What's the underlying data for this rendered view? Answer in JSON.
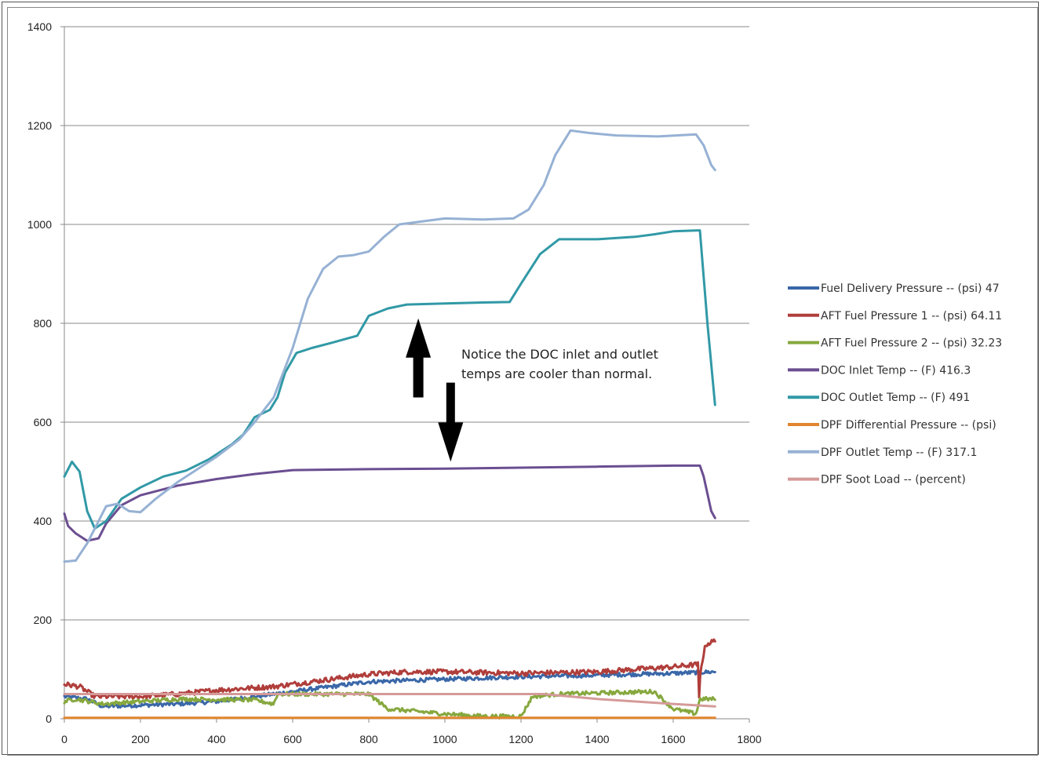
{
  "chart_data": {
    "type": "line",
    "title": "",
    "xlabel": "",
    "ylabel": "",
    "xlim": [
      0,
      1800
    ],
    "ylim": [
      0,
      1400
    ],
    "x_ticks": [
      0,
      200,
      400,
      600,
      800,
      1000,
      1200,
      1400,
      1600,
      1800
    ],
    "y_ticks": [
      0,
      200,
      400,
      600,
      800,
      1000,
      1200,
      1400
    ],
    "grid": "horizontal",
    "legend_position": "right",
    "annotation": {
      "lines": [
        "Notice the DOC inlet and outlet",
        "temps are cooler than normal."
      ],
      "arrows": [
        {
          "direction": "up",
          "x": 930,
          "y_from": 650,
          "y_to": 810
        },
        {
          "direction": "down",
          "x": 1015,
          "y_from": 680,
          "y_to": 520
        }
      ]
    },
    "series": [
      {
        "name": "Fuel Delivery Pressure --  (psi) 47",
        "color": "#3A67A8",
        "noise": 4,
        "points": [
          [
            0,
            45
          ],
          [
            60,
            40
          ],
          [
            100,
            25
          ],
          [
            300,
            30
          ],
          [
            400,
            35
          ],
          [
            550,
            50
          ],
          [
            600,
            55
          ],
          [
            800,
            75
          ],
          [
            1000,
            80
          ],
          [
            1200,
            85
          ],
          [
            1400,
            88
          ],
          [
            1600,
            92
          ],
          [
            1710,
            95
          ]
        ]
      },
      {
        "name": "AFT Fuel Pressure 1 --  (psi) 64.11",
        "color": "#B03E3B",
        "noise": 5,
        "points": [
          [
            0,
            70
          ],
          [
            40,
            65
          ],
          [
            80,
            45
          ],
          [
            200,
            45
          ],
          [
            300,
            50
          ],
          [
            400,
            58
          ],
          [
            550,
            65
          ],
          [
            650,
            75
          ],
          [
            800,
            90
          ],
          [
            900,
            95
          ],
          [
            1000,
            95
          ],
          [
            1200,
            92
          ],
          [
            1400,
            95
          ],
          [
            1600,
            105
          ],
          [
            1665,
            110
          ],
          [
            1668,
            40
          ],
          [
            1672,
            100
          ],
          [
            1685,
            150
          ],
          [
            1710,
            158
          ]
        ]
      },
      {
        "name": "AFT Fuel Pressure 2 --  (psi) 32.23",
        "color": "#86A83E",
        "noise": 4,
        "points": [
          [
            0,
            35
          ],
          [
            30,
            40
          ],
          [
            100,
            30
          ],
          [
            300,
            40
          ],
          [
            500,
            38
          ],
          [
            550,
            30
          ],
          [
            560,
            50
          ],
          [
            800,
            50
          ],
          [
            850,
            20
          ],
          [
            1000,
            10
          ],
          [
            1100,
            5
          ],
          [
            1200,
            5
          ],
          [
            1230,
            45
          ],
          [
            1300,
            50
          ],
          [
            1550,
            55
          ],
          [
            1600,
            20
          ],
          [
            1660,
            10
          ],
          [
            1670,
            40
          ],
          [
            1710,
            40
          ]
        ]
      },
      {
        "name": "DOC Inlet Temp --  (F) 416.3",
        "color": "#6B4E91",
        "noise": 0,
        "points": [
          [
            0,
            415
          ],
          [
            10,
            390
          ],
          [
            30,
            375
          ],
          [
            60,
            360
          ],
          [
            90,
            365
          ],
          [
            110,
            395
          ],
          [
            150,
            432
          ],
          [
            200,
            452
          ],
          [
            300,
            472
          ],
          [
            400,
            485
          ],
          [
            500,
            495
          ],
          [
            600,
            503
          ],
          [
            800,
            505
          ],
          [
            1000,
            506
          ],
          [
            1200,
            508
          ],
          [
            1400,
            510
          ],
          [
            1600,
            512
          ],
          [
            1670,
            512
          ],
          [
            1680,
            490
          ],
          [
            1700,
            420
          ],
          [
            1710,
            406
          ]
        ]
      },
      {
        "name": "DOC Outlet Temp --  (F) 491",
        "color": "#3199A6",
        "noise": 0,
        "points": [
          [
            0,
            490
          ],
          [
            20,
            520
          ],
          [
            40,
            500
          ],
          [
            60,
            420
          ],
          [
            80,
            385
          ],
          [
            110,
            400
          ],
          [
            150,
            445
          ],
          [
            200,
            468
          ],
          [
            260,
            490
          ],
          [
            320,
            502
          ],
          [
            380,
            525
          ],
          [
            440,
            555
          ],
          [
            470,
            575
          ],
          [
            500,
            610
          ],
          [
            540,
            625
          ],
          [
            560,
            650
          ],
          [
            580,
            700
          ],
          [
            610,
            740
          ],
          [
            650,
            750
          ],
          [
            700,
            760
          ],
          [
            770,
            775
          ],
          [
            800,
            815
          ],
          [
            850,
            830
          ],
          [
            900,
            838
          ],
          [
            1000,
            840
          ],
          [
            1100,
            842
          ],
          [
            1170,
            843
          ],
          [
            1200,
            880
          ],
          [
            1250,
            940
          ],
          [
            1300,
            970
          ],
          [
            1400,
            970
          ],
          [
            1500,
            975
          ],
          [
            1550,
            980
          ],
          [
            1600,
            986
          ],
          [
            1670,
            988
          ],
          [
            1690,
            800
          ],
          [
            1710,
            635
          ]
        ]
      },
      {
        "name": "DPF Differential Pressure --  (psi)",
        "color": "#E2852E",
        "noise": 0,
        "points": [
          [
            0,
            2
          ],
          [
            1710,
            2
          ]
        ]
      },
      {
        "name": "DPF Outlet Temp --  (F) 317.1",
        "color": "#96B1D4",
        "noise": 0,
        "points": [
          [
            0,
            318
          ],
          [
            30,
            320
          ],
          [
            60,
            355
          ],
          [
            90,
            400
          ],
          [
            110,
            430
          ],
          [
            140,
            435
          ],
          [
            170,
            420
          ],
          [
            200,
            418
          ],
          [
            240,
            445
          ],
          [
            300,
            480
          ],
          [
            400,
            530
          ],
          [
            460,
            565
          ],
          [
            500,
            600
          ],
          [
            550,
            650
          ],
          [
            600,
            750
          ],
          [
            640,
            850
          ],
          [
            680,
            910
          ],
          [
            720,
            935
          ],
          [
            760,
            938
          ],
          [
            800,
            945
          ],
          [
            840,
            975
          ],
          [
            880,
            1000
          ],
          [
            1000,
            1012
          ],
          [
            1100,
            1010
          ],
          [
            1180,
            1012
          ],
          [
            1220,
            1030
          ],
          [
            1260,
            1080
          ],
          [
            1290,
            1140
          ],
          [
            1330,
            1190
          ],
          [
            1380,
            1185
          ],
          [
            1450,
            1180
          ],
          [
            1560,
            1178
          ],
          [
            1660,
            1182
          ],
          [
            1680,
            1160
          ],
          [
            1700,
            1120
          ],
          [
            1710,
            1110
          ]
        ]
      },
      {
        "name": "DPF Soot Load --  (percent)",
        "color": "#D59A99",
        "noise": 0,
        "points": [
          [
            0,
            50
          ],
          [
            900,
            50
          ],
          [
            1260,
            50
          ],
          [
            1400,
            40
          ],
          [
            1600,
            30
          ],
          [
            1710,
            25
          ]
        ]
      }
    ]
  }
}
